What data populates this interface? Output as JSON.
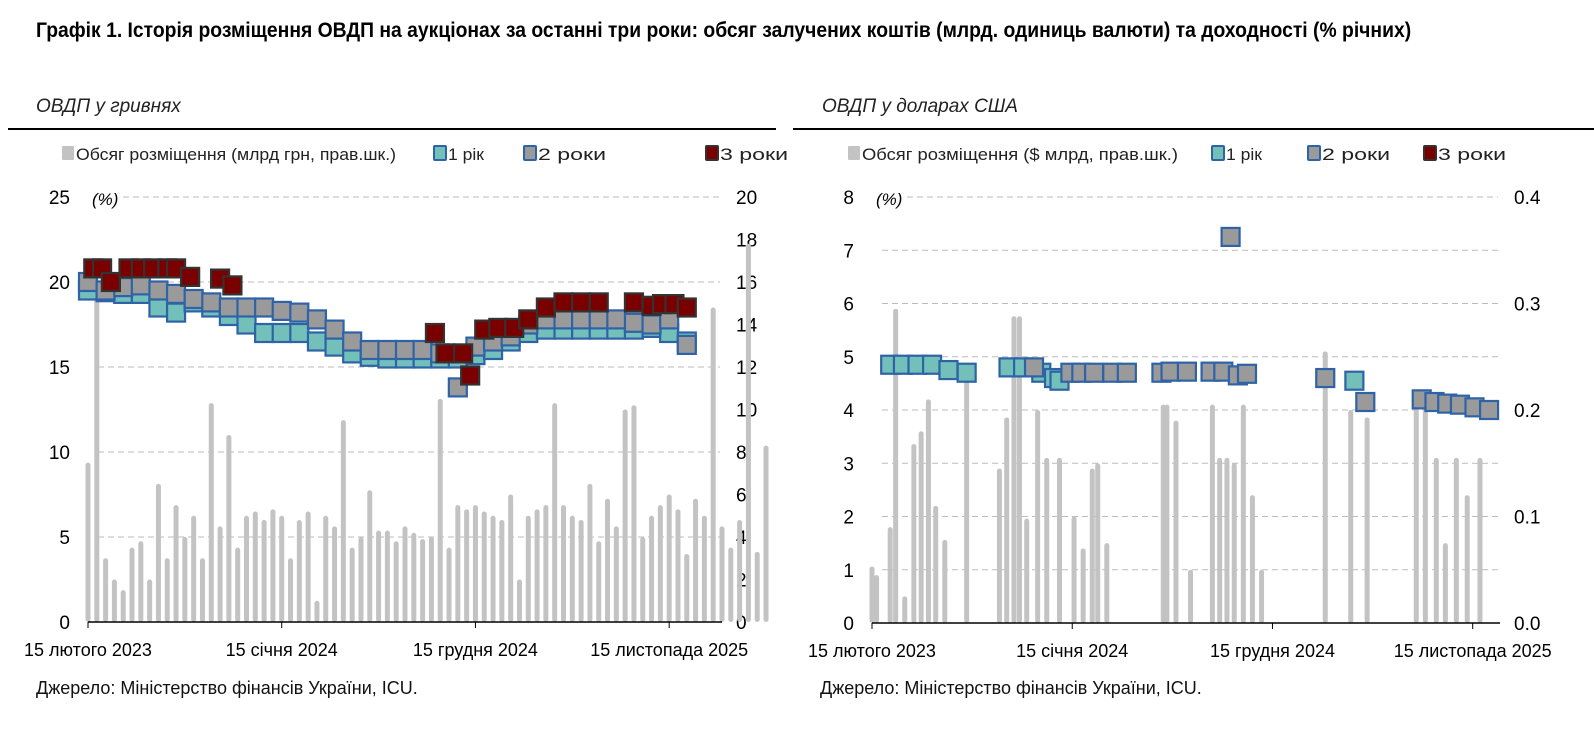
{
  "title": "Графік 1. Історія розміщення ОВДП на аукціонах за останні три роки: обсяг залучених коштів (млрд. одиниць валюти) та доходності (% річних)",
  "colors": {
    "one_year": "#72c0b9",
    "two_years": "#9a9a9a",
    "three_years": "#7a0000",
    "border_blue": "#2f63a8",
    "border_dark": "#333333",
    "volume": "#c3c3c3"
  },
  "chart_data": [
    {
      "type": "scatter+bar",
      "subtitle": "ОВДП у гривнях",
      "source": "Джерело: Міністерство фінансів України, ICU.",
      "legend": [
        "Обсяг розміщення (млрд грн, прав.шк.)",
        "1 рік",
        "2 роки",
        "3 роки"
      ],
      "y_unit_label": "(%)",
      "ylim": [
        0,
        25
      ],
      "yticks": [
        0,
        5,
        10,
        15,
        20,
        25
      ],
      "y2lim": [
        0,
        20
      ],
      "y2ticks": [
        0,
        2,
        4,
        6,
        8,
        10,
        12,
        14,
        16,
        18,
        20
      ],
      "x_unit": "months since 15 Feb 2023",
      "xlim": [
        0,
        36
      ],
      "xticks": [
        {
          "x": 0,
          "label": "15 лютого 2023"
        },
        {
          "x": 11,
          "label": "15 січня 2024"
        },
        {
          "x": 22,
          "label": "15 грудня 2024"
        },
        {
          "x": 33,
          "label": "15 листопада 2025"
        }
      ],
      "series": [
        {
          "name": "1 рік",
          "points": [
            [
              0,
              19.5
            ],
            [
              1,
              19.4
            ],
            [
              2,
              19.3
            ],
            [
              3,
              19.3
            ],
            [
              4,
              18.5
            ],
            [
              5,
              18.2
            ],
            [
              6,
              18.8
            ],
            [
              7,
              18.5
            ],
            [
              8,
              18.0
            ],
            [
              9,
              17.5
            ],
            [
              10,
              17.0
            ],
            [
              11,
              17.0
            ],
            [
              12,
              17.0
            ],
            [
              13,
              16.5
            ],
            [
              14,
              16.2
            ],
            [
              15,
              15.8
            ],
            [
              16,
              15.6
            ],
            [
              17,
              15.5
            ],
            [
              18,
              15.5
            ],
            [
              19,
              15.5
            ],
            [
              20,
              15.5
            ],
            [
              21,
              15.5
            ],
            [
              22,
              15.7
            ],
            [
              23,
              16.0
            ],
            [
              24,
              16.5
            ],
            [
              25,
              17.0
            ],
            [
              26,
              17.2
            ],
            [
              27,
              17.2
            ],
            [
              28,
              17.2
            ],
            [
              29,
              17.2
            ],
            [
              30,
              17.2
            ],
            [
              31,
              17.2
            ],
            [
              32,
              17.3
            ],
            [
              33,
              17.0
            ],
            [
              34,
              16.5
            ]
          ]
        },
        {
          "name": "2 роки",
          "points": [
            [
              0,
              20.0
            ],
            [
              1,
              19.5
            ],
            [
              2,
              19.7
            ],
            [
              3,
              19.8
            ],
            [
              4,
              19.5
            ],
            [
              5,
              19.3
            ],
            [
              6,
              19.0
            ],
            [
              7,
              18.8
            ],
            [
              8,
              18.5
            ],
            [
              9,
              18.5
            ],
            [
              10,
              18.5
            ],
            [
              11,
              18.3
            ],
            [
              12,
              18.2
            ],
            [
              13,
              17.8
            ],
            [
              14,
              17.2
            ],
            [
              15,
              16.5
            ],
            [
              16,
              16.0
            ],
            [
              17,
              16.0
            ],
            [
              18,
              16.0
            ],
            [
              19,
              16.0
            ],
            [
              20,
              15.8
            ],
            [
              21,
              13.8
            ],
            [
              22,
              16.2
            ],
            [
              23,
              16.5
            ],
            [
              24,
              16.8
            ],
            [
              25,
              17.5
            ],
            [
              26,
              17.8
            ],
            [
              27,
              17.8
            ],
            [
              28,
              17.8
            ],
            [
              29,
              17.8
            ],
            [
              30,
              17.8
            ],
            [
              31,
              17.6
            ],
            [
              32,
              17.5
            ],
            [
              33,
              17.8
            ],
            [
              34,
              16.3
            ]
          ]
        },
        {
          "name": "3 роки",
          "points": [
            [
              0.3,
              20.8
            ],
            [
              0.8,
              20.8
            ],
            [
              1.3,
              20.0
            ],
            [
              2.3,
              20.8
            ],
            [
              3,
              20.8
            ],
            [
              3.7,
              20.8
            ],
            [
              4.5,
              20.8
            ],
            [
              5,
              20.8
            ],
            [
              5.8,
              20.3
            ],
            [
              7.5,
              20.2
            ],
            [
              8.2,
              19.8
            ],
            [
              19.7,
              17.0
            ],
            [
              20.3,
              15.8
            ],
            [
              21.3,
              15.8
            ],
            [
              21.7,
              14.5
            ],
            [
              22.5,
              17.2
            ],
            [
              23.3,
              17.3
            ],
            [
              24.2,
              17.3
            ],
            [
              25,
              17.8
            ],
            [
              26,
              18.5
            ],
            [
              27,
              18.8
            ],
            [
              28,
              18.8
            ],
            [
              29,
              18.8
            ],
            [
              31,
              18.8
            ],
            [
              32,
              18.6
            ],
            [
              32.6,
              18.7
            ],
            [
              33.3,
              18.7
            ],
            [
              34,
              18.5
            ]
          ]
        }
      ],
      "volume": {
        "name": "Обсяг розміщення (млрд грн, прав.шк.)",
        "x_start": 0,
        "x_step": 0.5,
        "values": [
          7.5,
          15.5,
          3,
          2,
          1.5,
          3.5,
          3.8,
          2,
          6.5,
          3,
          5.5,
          4,
          5,
          3,
          10.3,
          4.5,
          8.8,
          3.5,
          5,
          5.2,
          4.8,
          5.3,
          5,
          3,
          4.8,
          5.2,
          1,
          5,
          4.5,
          9.5,
          3.5,
          4,
          6.2,
          4.3,
          4.3,
          3.8,
          4.5,
          4.2,
          3.9,
          4,
          10.5,
          3.5,
          5.5,
          5.3,
          5.5,
          5.2,
          5,
          4.8,
          6,
          2,
          5,
          5.3,
          5.5,
          10.3,
          5.5,
          5,
          4.8,
          6.5,
          3.8,
          5.8,
          4.5,
          10,
          10.2,
          4,
          5,
          5.5,
          6,
          5.3,
          3.2,
          5.8,
          5,
          14.8,
          4.5,
          3.5,
          4.8,
          17.8,
          3.3,
          8.3
        ]
      }
    },
    {
      "type": "scatter+bar",
      "subtitle": "ОВДП у доларах США",
      "source": "Джерело: Міністерство фінансів України, ICU.",
      "legend": [
        "Обсяг розміщення ($ млрд, прав.шк.)",
        "1 рік",
        "2 роки",
        "3 роки"
      ],
      "y_unit_label": "(%)",
      "ylim": [
        0,
        8
      ],
      "yticks": [
        0,
        1,
        2,
        3,
        4,
        5,
        6,
        7,
        8
      ],
      "y2lim": [
        0,
        0.4
      ],
      "y2ticks": [
        0.0,
        0.1,
        0.2,
        0.3,
        0.4
      ],
      "x_unit": "months since 15 Feb 2023",
      "xlim": [
        0,
        34.5
      ],
      "xticks": [
        {
          "x": 0,
          "label": "15 лютого 2023"
        },
        {
          "x": 11,
          "label": "15 січня 2024"
        },
        {
          "x": 22,
          "label": "15 грудня 2024"
        },
        {
          "x": 33,
          "label": "15 листопада 2025"
        }
      ],
      "series": [
        {
          "name": "1 рік",
          "points": [
            [
              1,
              4.85
            ],
            [
              1.7,
              4.85
            ],
            [
              2.5,
              4.85
            ],
            [
              3.3,
              4.85
            ],
            [
              4.2,
              4.75
            ],
            [
              5.2,
              4.7
            ],
            [
              7.5,
              4.8
            ],
            [
              8.3,
              4.8
            ],
            [
              9.3,
              4.7
            ],
            [
              10,
              4.6
            ],
            [
              10.3,
              4.55
            ],
            [
              26.5,
              4.55
            ]
          ]
        },
        {
          "name": "2 роки",
          "points": [
            [
              8.9,
              4.8
            ],
            [
              10.9,
              4.7
            ],
            [
              11.5,
              4.7
            ],
            [
              12.2,
              4.7
            ],
            [
              13.2,
              4.7
            ],
            [
              14,
              4.7
            ],
            [
              15.9,
              4.7
            ],
            [
              16.4,
              4.72
            ],
            [
              17.3,
              4.72
            ],
            [
              18.6,
              4.72
            ],
            [
              19.3,
              4.72
            ],
            [
              20.1,
              4.65
            ],
            [
              20.6,
              4.68
            ],
            [
              19.7,
              7.25
            ],
            [
              24.9,
              4.6
            ],
            [
              27.1,
              4.15
            ],
            [
              30.2,
              4.2
            ],
            [
              30.9,
              4.15
            ],
            [
              31.6,
              4.12
            ],
            [
              32.3,
              4.1
            ],
            [
              33.1,
              4.05
            ],
            [
              33.9,
              4.0
            ]
          ]
        },
        {
          "name": "3 роки",
          "points": []
        }
      ],
      "volume": {
        "name": "Обсяг розміщення ($ млрд, прав.шк.)",
        "points": [
          [
            0,
            0.053
          ],
          [
            0.25,
            0.045
          ],
          [
            1,
            0.09
          ],
          [
            1.3,
            0.295
          ],
          [
            1.8,
            0.025
          ],
          [
            2.3,
            0.168
          ],
          [
            2.7,
            0.18
          ],
          [
            3.1,
            0.21
          ],
          [
            3.5,
            0.11
          ],
          [
            4,
            0.078
          ],
          [
            5.2,
            0.235
          ],
          [
            7,
            0.145
          ],
          [
            7.4,
            0.193
          ],
          [
            7.8,
            0.288
          ],
          [
            8.1,
            0.288
          ],
          [
            8.5,
            0.098
          ],
          [
            9.1,
            0.2
          ],
          [
            9.6,
            0.155
          ],
          [
            10.3,
            0.155
          ],
          [
            11.1,
            0.1
          ],
          [
            11.6,
            0.07
          ],
          [
            12.1,
            0.145
          ],
          [
            12.4,
            0.15
          ],
          [
            12.9,
            0.075
          ],
          [
            16,
            0.205
          ],
          [
            16.2,
            0.205
          ],
          [
            16.7,
            0.19
          ],
          [
            17.5,
            0.05
          ],
          [
            18.7,
            0.205
          ],
          [
            19.1,
            0.155
          ],
          [
            19.5,
            0.155
          ],
          [
            19.9,
            0.15
          ],
          [
            20.4,
            0.205
          ],
          [
            20.9,
            0.12
          ],
          [
            21.4,
            0.05
          ],
          [
            24.9,
            0.255
          ],
          [
            26.3,
            0.2
          ],
          [
            27.2,
            0.193
          ],
          [
            29.9,
            0.205
          ],
          [
            30.4,
            0.2
          ],
          [
            31,
            0.155
          ],
          [
            31.5,
            0.075
          ],
          [
            32.1,
            0.155
          ],
          [
            32.7,
            0.12
          ],
          [
            33.4,
            0.155
          ]
        ]
      }
    }
  ]
}
